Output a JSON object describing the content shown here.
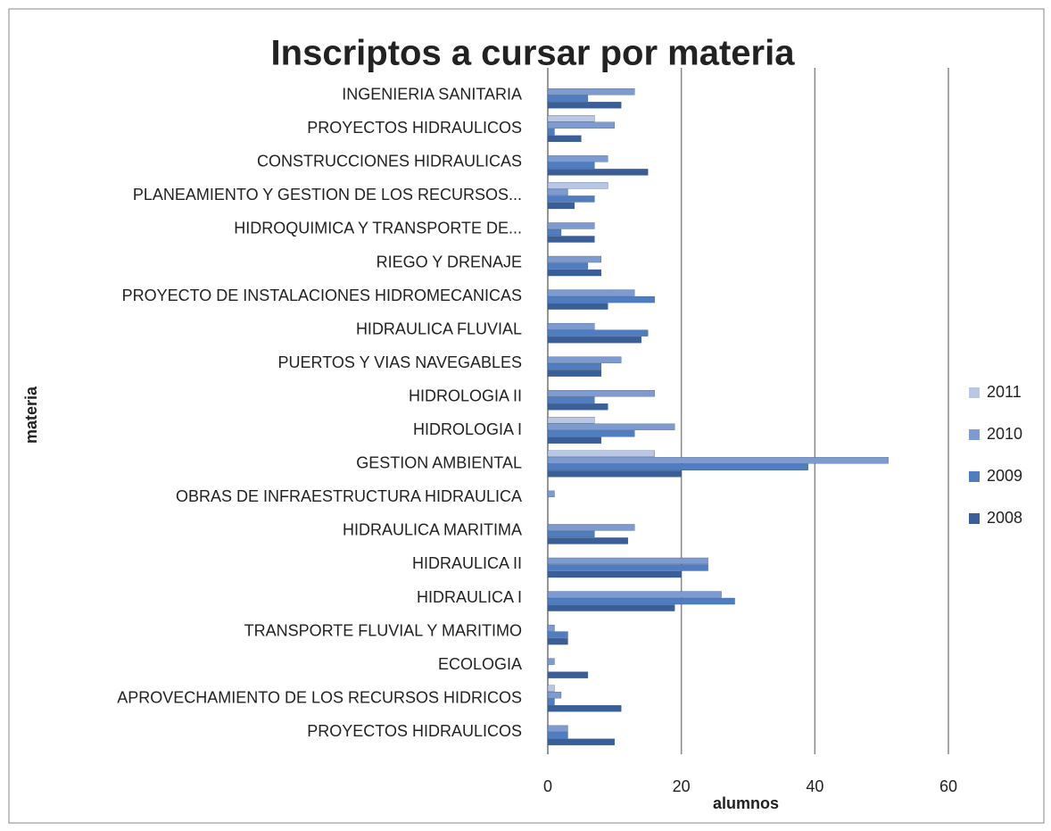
{
  "chart_data": {
    "type": "hbar",
    "title": "Inscriptos a cursar por materia",
    "x_label": "alumnos",
    "y_label": "materia",
    "categories": [
      "INGENIERIA SANITARIA",
      "PROYECTOS HIDRAULICOS",
      "CONSTRUCCIONES HIDRAULICAS",
      "PLANEAMIENTO Y GESTION DE LOS RECURSOS...",
      "HIDROQUIMICA Y TRANSPORTE DE...",
      "RIEGO Y DRENAJE",
      "PROYECTO DE INSTALACIONES HIDROMECANICAS",
      "HIDRAULICA FLUVIAL",
      "PUERTOS Y VIAS NAVEGABLES",
      "HIDROLOGIA II",
      "HIDROLOGIA I",
      "GESTION AMBIENTAL",
      "OBRAS DE INFRAESTRUCTURA HIDRAULICA",
      "HIDRAULICA MARITIMA",
      "HIDRAULICA II",
      "HIDRAULICA I",
      "TRANSPORTE FLUVIAL Y MARITIMO",
      "ECOLOGIA",
      "APROVECHAMIENTO DE LOS RECURSOS HIDRICOS",
      "PROYECTOS HIDRAULICOS"
    ],
    "series": [
      {
        "name": "2011",
        "color": "#b9c7e4",
        "values": [
          0,
          7,
          0,
          9,
          0,
          0,
          0,
          0,
          0,
          0,
          7,
          16,
          0,
          0,
          0,
          0,
          0,
          0,
          1,
          0
        ]
      },
      {
        "name": "2010",
        "color": "#7d9bd0",
        "values": [
          13,
          10,
          9,
          3,
          7,
          8,
          13,
          7,
          11,
          16,
          19,
          51,
          1,
          13,
          24,
          26,
          1,
          1,
          2,
          3
        ]
      },
      {
        "name": "2009",
        "color": "#4f7dc0",
        "values": [
          6,
          1,
          7,
          7,
          2,
          6,
          16,
          15,
          8,
          7,
          13,
          39,
          0,
          7,
          24,
          28,
          3,
          0,
          1,
          3
        ]
      },
      {
        "name": "2008",
        "color": "#3a5f98",
        "values": [
          11,
          5,
          15,
          4,
          7,
          8,
          9,
          14,
          8,
          9,
          8,
          20,
          0,
          12,
          20,
          19,
          3,
          6,
          11,
          10
        ]
      }
    ],
    "xlim": [
      0,
      60
    ],
    "xticks": [
      0,
      20,
      40,
      60
    ],
    "grid": true,
    "legend": "right"
  }
}
